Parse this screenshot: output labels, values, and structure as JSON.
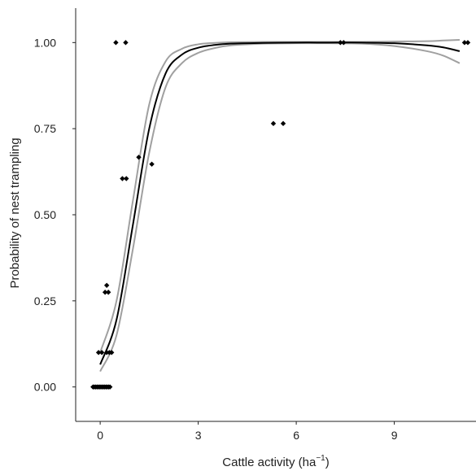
{
  "chart_data": {
    "type": "scatter",
    "xlabel": "Cattle activity (ha",
    "xlabel_superscript": "−1",
    "xlabel_suffix": ")",
    "ylabel": "Probability of nest trampling",
    "xlim": [
      -0.75,
      11.5
    ],
    "ylim": [
      -0.1,
      1.1
    ],
    "x_ticks": [
      0,
      3,
      6,
      9
    ],
    "x_tick_labels": [
      "0",
      "3",
      "6",
      "9"
    ],
    "y_ticks": [
      0.0,
      0.25,
      0.5,
      0.75,
      1.0
    ],
    "y_tick_labels": [
      "0.00",
      "0.25",
      "0.50",
      "0.75",
      "1.00"
    ],
    "grid": false,
    "colors": {
      "points": "#000000",
      "fit": "#000000",
      "ci": "#a0a0a0",
      "axis": "#222222"
    },
    "points": [
      {
        "x": -0.22,
        "y": 0.0
      },
      {
        "x": -0.18,
        "y": 0.0
      },
      {
        "x": -0.14,
        "y": 0.0
      },
      {
        "x": -0.1,
        "y": 0.0
      },
      {
        "x": -0.06,
        "y": 0.0
      },
      {
        "x": -0.02,
        "y": 0.0
      },
      {
        "x": 0.02,
        "y": 0.0
      },
      {
        "x": 0.06,
        "y": 0.0
      },
      {
        "x": 0.1,
        "y": 0.0
      },
      {
        "x": 0.14,
        "y": 0.0
      },
      {
        "x": 0.18,
        "y": 0.0
      },
      {
        "x": 0.22,
        "y": 0.0
      },
      {
        "x": 0.26,
        "y": 0.0
      },
      {
        "x": 0.3,
        "y": 0.0
      },
      {
        "x": -0.05,
        "y": 0.1
      },
      {
        "x": 0.05,
        "y": 0.1
      },
      {
        "x": 0.2,
        "y": 0.1
      },
      {
        "x": 0.28,
        "y": 0.1
      },
      {
        "x": 0.35,
        "y": 0.1
      },
      {
        "x": 0.15,
        "y": 0.275
      },
      {
        "x": 0.25,
        "y": 0.275
      },
      {
        "x": 0.2,
        "y": 0.295
      },
      {
        "x": 0.48,
        "y": 1.0
      },
      {
        "x": 0.78,
        "y": 1.0
      },
      {
        "x": 0.68,
        "y": 0.605
      },
      {
        "x": 0.8,
        "y": 0.605
      },
      {
        "x": 1.18,
        "y": 0.667
      },
      {
        "x": 1.58,
        "y": 0.647
      },
      {
        "x": 5.3,
        "y": 0.765
      },
      {
        "x": 5.6,
        "y": 0.765
      },
      {
        "x": 7.35,
        "y": 1.0
      },
      {
        "x": 7.45,
        "y": 1.0
      },
      {
        "x": 11.15,
        "y": 1.0
      },
      {
        "x": 11.25,
        "y": 1.0
      }
    ],
    "fit_line": {
      "x": [
        0,
        0.5,
        1.0,
        1.5,
        2.0,
        2.5,
        3.0,
        3.5,
        4.0,
        5.0,
        6.0,
        7.0,
        8.0,
        9.0,
        10.0,
        10.5,
        11.0
      ],
      "y": [
        0.065,
        0.195,
        0.47,
        0.75,
        0.91,
        0.965,
        0.985,
        0.993,
        0.997,
        0.999,
        1.0,
        1.0,
        1.0,
        0.998,
        0.992,
        0.986,
        0.975
      ]
    },
    "ci_upper": {
      "x": [
        0,
        0.5,
        1.0,
        1.5,
        2.0,
        2.5,
        3.0,
        3.5,
        4.0,
        5.0,
        6.0,
        7.0,
        8.0,
        9.0,
        10.0,
        10.5,
        11.0
      ],
      "y": [
        0.1,
        0.25,
        0.54,
        0.82,
        0.945,
        0.982,
        0.995,
        0.999,
        1.001,
        1.002,
        1.002,
        1.002,
        1.002,
        1.003,
        1.004,
        1.006,
        1.008
      ]
    },
    "ci_lower": {
      "x": [
        0,
        0.5,
        1.0,
        1.5,
        2.0,
        2.5,
        3.0,
        3.5,
        4.0,
        5.0,
        6.0,
        7.0,
        8.0,
        9.0,
        10.0,
        10.5,
        11.0
      ],
      "y": [
        0.045,
        0.15,
        0.4,
        0.68,
        0.87,
        0.94,
        0.97,
        0.984,
        0.992,
        0.997,
        0.998,
        0.998,
        0.997,
        0.99,
        0.975,
        0.962,
        0.94
      ]
    }
  }
}
